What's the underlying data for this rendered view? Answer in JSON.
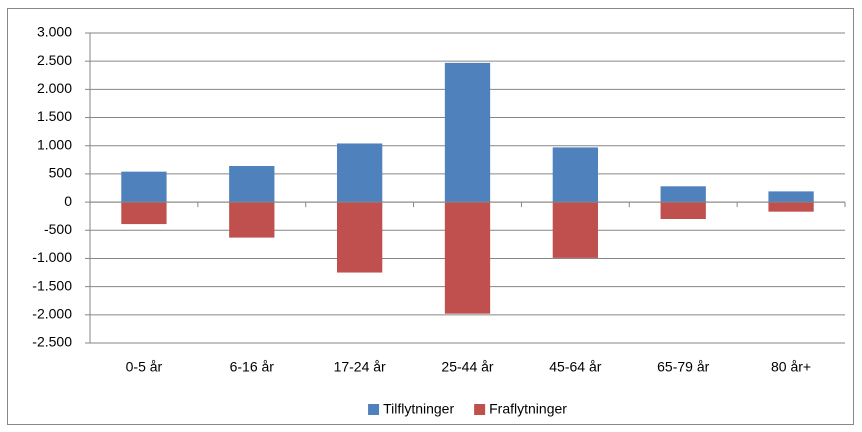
{
  "chart_data": {
    "type": "bar",
    "stacked": true,
    "categories": [
      "0-5 år",
      "6-16 år",
      "17-24 år",
      "25-44 år",
      "45-64 år",
      "65-79 år",
      "80 år+"
    ],
    "series": [
      {
        "name": "Tilflytninger",
        "color": "#4f81bd",
        "values": [
          540,
          640,
          1040,
          2470,
          970,
          280,
          190
        ]
      },
      {
        "name": "Fraflytninger",
        "color": "#c0504d",
        "values": [
          -390,
          -630,
          -1250,
          -1980,
          -990,
          -300,
          -170
        ]
      }
    ],
    "ylim": [
      -2500,
      3000
    ],
    "yticks": [
      {
        "value": -2500,
        "label": "-2.500"
      },
      {
        "value": -2000,
        "label": "-2.000"
      },
      {
        "value": -1500,
        "label": "-1.500"
      },
      {
        "value": -1000,
        "label": "-1.000"
      },
      -500,
      0,
      500,
      {
        "value": 1000,
        "label": "1.000"
      },
      {
        "value": 1500,
        "label": "1.500"
      },
      {
        "value": 2000,
        "label": "2.000"
      },
      {
        "value": 2500,
        "label": "2.500"
      },
      {
        "value": 3000,
        "label": "3.000"
      }
    ],
    "grid": true,
    "legend": "bottom"
  }
}
